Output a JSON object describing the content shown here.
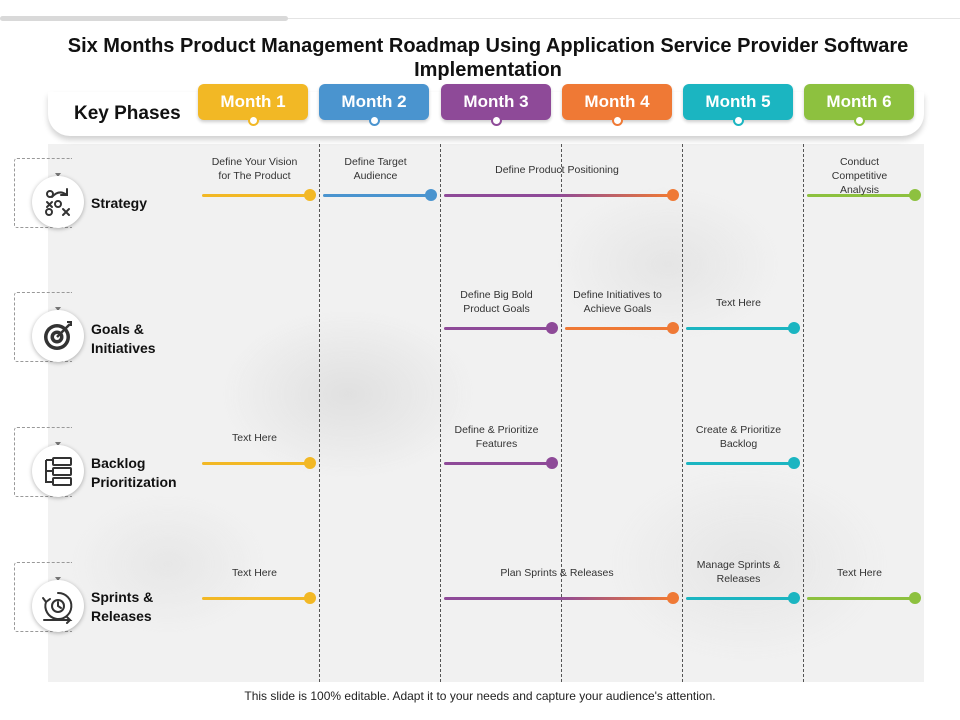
{
  "title": "Six Months Product Management Roadmap Using Application Service Provider Software Implementation",
  "key_phases_label": "Key Phases",
  "months": [
    {
      "label": "Month 1",
      "color": "#f2b825"
    },
    {
      "label": "Month 2",
      "color": "#4a94cf"
    },
    {
      "label": "Month 3",
      "color": "#8e4a98"
    },
    {
      "label": "Month 4",
      "color": "#ef7935"
    },
    {
      "label": "Month 5",
      "color": "#1bb5c1"
    },
    {
      "label": "Month 6",
      "color": "#8dc13f"
    }
  ],
  "rows": [
    {
      "label": "Strategy",
      "icon": "strategy-play-icon"
    },
    {
      "label": "Goals & Initiatives",
      "icon": "target-icon"
    },
    {
      "label": "Backlog Prioritization",
      "icon": "backlog-list-icon"
    },
    {
      "label": "Sprints & Releases",
      "icon": "sprint-cycle-icon"
    }
  ],
  "tasks": [
    {
      "row": 0,
      "start_month": 1,
      "end_month": 1,
      "color": "#f2b825",
      "label": "Define Your Vision for The Product"
    },
    {
      "row": 0,
      "start_month": 2,
      "end_month": 2,
      "color": "#4a94cf",
      "label": "Define Target Audience"
    },
    {
      "row": 0,
      "start_month": 3,
      "end_month": 4,
      "color": "#8e4a98",
      "end_color": "#ef7935",
      "label": "Define Product Positioning"
    },
    {
      "row": 0,
      "start_month": 6,
      "end_month": 6,
      "color": "#8dc13f",
      "label": "Conduct Competitive Analysis"
    },
    {
      "row": 1,
      "start_month": 3,
      "end_month": 3,
      "color": "#8e4a98",
      "label": "Define Big Bold Product Goals"
    },
    {
      "row": 1,
      "start_month": 4,
      "end_month": 4,
      "color": "#ef7935",
      "label": "Define Initiatives to Achieve Goals"
    },
    {
      "row": 1,
      "start_month": 5,
      "end_month": 5,
      "color": "#1bb5c1",
      "label": "Text Here"
    },
    {
      "row": 2,
      "start_month": 1,
      "end_month": 1,
      "color": "#f2b825",
      "label": "Text Here"
    },
    {
      "row": 2,
      "start_month": 3,
      "end_month": 3,
      "color": "#8e4a98",
      "label": "Define & Prioritize Features"
    },
    {
      "row": 2,
      "start_month": 5,
      "end_month": 5,
      "color": "#1bb5c1",
      "label": "Create & Prioritize Backlog"
    },
    {
      "row": 3,
      "start_month": 1,
      "end_month": 1,
      "color": "#f2b825",
      "label": "Text Here"
    },
    {
      "row": 3,
      "start_month": 3,
      "end_month": 4,
      "color": "#8e4a98",
      "end_color": "#ef7935",
      "label": "Plan Sprints & Releases"
    },
    {
      "row": 3,
      "start_month": 5,
      "end_month": 5,
      "color": "#1bb5c1",
      "label": "Manage Sprints & Releases"
    },
    {
      "row": 3,
      "start_month": 6,
      "end_month": 6,
      "color": "#8dc13f",
      "label": "Text Here"
    }
  ],
  "footer": "This slide is 100% editable. Adapt it to your needs and capture your audience's attention."
}
